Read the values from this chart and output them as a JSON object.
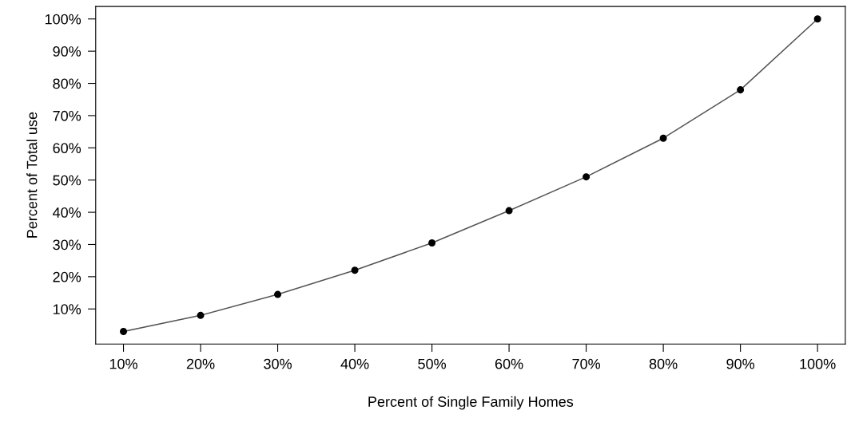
{
  "chart_data": {
    "type": "line",
    "xlabel": "Percent of Single Family Homes",
    "ylabel": "Percent of Total use",
    "x": [
      10,
      20,
      30,
      40,
      50,
      60,
      70,
      80,
      90,
      100
    ],
    "series": [
      {
        "color": "#555555",
        "values": [
          3,
          8,
          14.5,
          22,
          30.5,
          40.5,
          51,
          63,
          78,
          100
        ]
      }
    ],
    "marker": "circle",
    "line_style": "solid",
    "grid": false,
    "legend": false,
    "xlim": [
      6.4,
      103.6
    ],
    "ylim": [
      -0.88,
      103.88
    ],
    "xticks": [
      {
        "value": 10,
        "label": "10%"
      },
      {
        "value": 20,
        "label": "20%"
      },
      {
        "value": 30,
        "label": "30%"
      },
      {
        "value": 40,
        "label": "40%"
      },
      {
        "value": 50,
        "label": "50%"
      },
      {
        "value": 60,
        "label": "60%"
      },
      {
        "value": 70,
        "label": "70%"
      },
      {
        "value": 80,
        "label": "80%"
      },
      {
        "value": 90,
        "label": "90%"
      },
      {
        "value": 100,
        "label": "100%"
      }
    ],
    "yticks": [
      {
        "value": 10,
        "label": "10%"
      },
      {
        "value": 20,
        "label": "20%"
      },
      {
        "value": 30,
        "label": "30%"
      },
      {
        "value": 40,
        "label": "40%"
      },
      {
        "value": 50,
        "label": "50%"
      },
      {
        "value": 60,
        "label": "60%"
      },
      {
        "value": 70,
        "label": "70%"
      },
      {
        "value": 80,
        "label": "80%"
      },
      {
        "value": 90,
        "label": "90%"
      },
      {
        "value": 100,
        "label": "100%"
      }
    ]
  }
}
